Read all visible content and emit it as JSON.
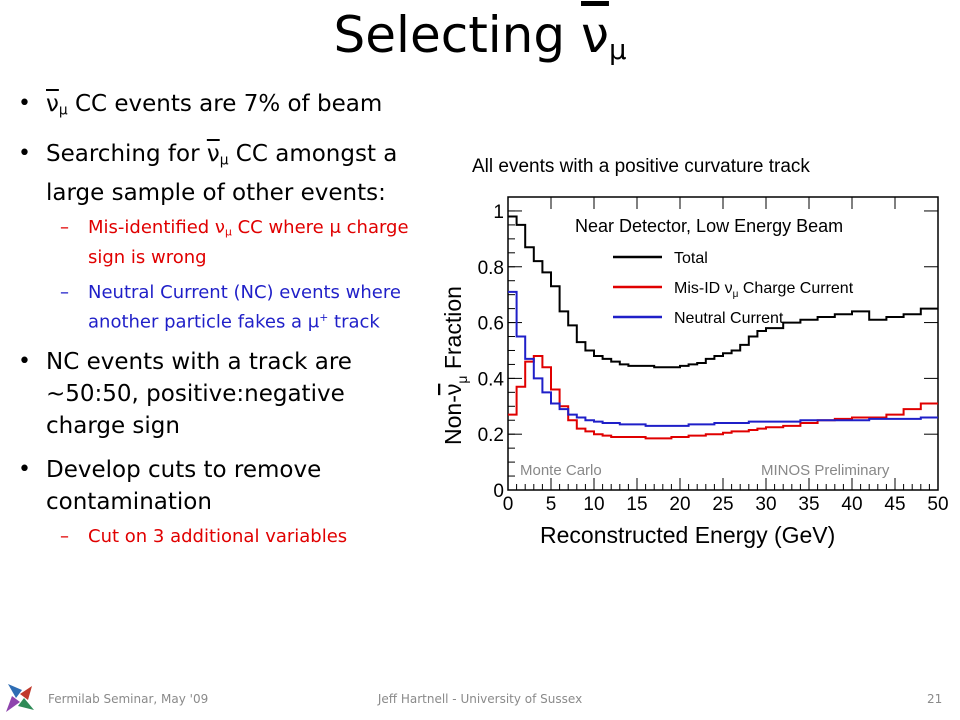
{
  "title": {
    "text": "Selecting ",
    "symbol": "ν",
    "sub": "μ"
  },
  "bullets": {
    "b1": {
      "symbol": "ν",
      "sub": "μ",
      "text": " CC events are 7% of beam"
    },
    "b2": {
      "text1": "Searching for ",
      "symbol": "ν",
      "sub": "μ",
      "text2": " CC amongst a large sample of other events:"
    },
    "s1": {
      "dash": "–",
      "text1": "Mis-identified ν",
      "sub": "μ",
      "text2": " CC where μ charge sign is wrong"
    },
    "s2": {
      "dash": "–",
      "text1": "Neutral Current (NC) events where another particle fakes a μ",
      "sup": "+",
      "text2": " track"
    },
    "b3": {
      "text": "NC events with a track are ~50:50, positive:negative charge sign"
    },
    "b4": {
      "text": "Develop cuts to remove contamination"
    },
    "s3": {
      "dash": "–",
      "text": "Cut on 3 additional variables"
    }
  },
  "plot_caption": "All events with a positive curvature track",
  "footer": {
    "left": "Fermilab Seminar, May '09",
    "center": "Jeff Hartnell - University of Sussex",
    "page": "21"
  },
  "colors": {
    "total": "#000000",
    "misid": "#e00000",
    "nc": "#1f1fc8",
    "red_text": "#e00000",
    "blue_text": "#1f1fc8"
  },
  "chart_data": {
    "type": "line",
    "step": true,
    "title": "Near Detector, Low Energy Beam",
    "xlabel": "Reconstructed Energy (GeV)",
    "ylabel": {
      "text1": "Non-",
      "symbol": "ν",
      "sub": "μ",
      "text2": " Fraction"
    },
    "xlim": [
      0,
      50
    ],
    "ylim": [
      0,
      1.05
    ],
    "xticks": [
      0,
      5,
      10,
      15,
      20,
      25,
      30,
      35,
      40,
      45,
      50
    ],
    "yticks": [
      0,
      0.2,
      0.4,
      0.6,
      0.8,
      1
    ],
    "ytick_labels": [
      "0",
      "0.2",
      "0.4",
      "0.6",
      "0.8",
      "1"
    ],
    "annotations": {
      "left": "Monte Carlo",
      "right": "MINOS Preliminary"
    },
    "legend": {
      "position": "top-right",
      "entries": [
        {
          "text": "Total"
        },
        {
          "text1": "Mis-ID ",
          "symbol": "ν",
          "sub": "μ",
          "text2": " Charge Current"
        },
        {
          "text": "Neutral Current"
        }
      ]
    },
    "bin_edges": [
      0,
      1,
      2,
      3,
      4,
      5,
      6,
      7,
      8,
      9,
      10,
      11,
      12,
      13,
      14,
      15,
      16,
      17,
      18,
      19,
      20,
      21,
      22,
      23,
      24,
      25,
      26,
      27,
      28,
      29,
      30,
      32,
      34,
      36,
      38,
      40,
      42,
      44,
      46,
      48,
      50
    ],
    "series": [
      {
        "name": "Total",
        "color": "#000000",
        "values": [
          0.98,
          0.95,
          0.87,
          0.82,
          0.78,
          0.73,
          0.64,
          0.59,
          0.53,
          0.5,
          0.48,
          0.47,
          0.46,
          0.45,
          0.445,
          0.445,
          0.445,
          0.44,
          0.44,
          0.44,
          0.445,
          0.45,
          0.455,
          0.47,
          0.48,
          0.49,
          0.5,
          0.52,
          0.55,
          0.57,
          0.58,
          0.6,
          0.61,
          0.62,
          0.63,
          0.64,
          0.61,
          0.62,
          0.63,
          0.65
        ]
      },
      {
        "name": "Mis-ID Charge Current",
        "color": "#e00000",
        "values": [
          0.27,
          0.37,
          0.46,
          0.48,
          0.44,
          0.36,
          0.3,
          0.25,
          0.22,
          0.21,
          0.2,
          0.195,
          0.19,
          0.19,
          0.19,
          0.19,
          0.185,
          0.185,
          0.185,
          0.19,
          0.19,
          0.195,
          0.195,
          0.2,
          0.2,
          0.205,
          0.21,
          0.21,
          0.215,
          0.22,
          0.225,
          0.23,
          0.24,
          0.25,
          0.255,
          0.26,
          0.26,
          0.27,
          0.29,
          0.31
        ]
      },
      {
        "name": "Neutral Current",
        "color": "#1f1fc8",
        "values": [
          0.71,
          0.55,
          0.47,
          0.4,
          0.35,
          0.31,
          0.29,
          0.27,
          0.26,
          0.25,
          0.245,
          0.24,
          0.24,
          0.235,
          0.235,
          0.235,
          0.23,
          0.23,
          0.23,
          0.23,
          0.23,
          0.235,
          0.235,
          0.235,
          0.24,
          0.24,
          0.24,
          0.24,
          0.245,
          0.245,
          0.245,
          0.245,
          0.25,
          0.25,
          0.25,
          0.25,
          0.255,
          0.255,
          0.255,
          0.26
        ]
      }
    ]
  }
}
